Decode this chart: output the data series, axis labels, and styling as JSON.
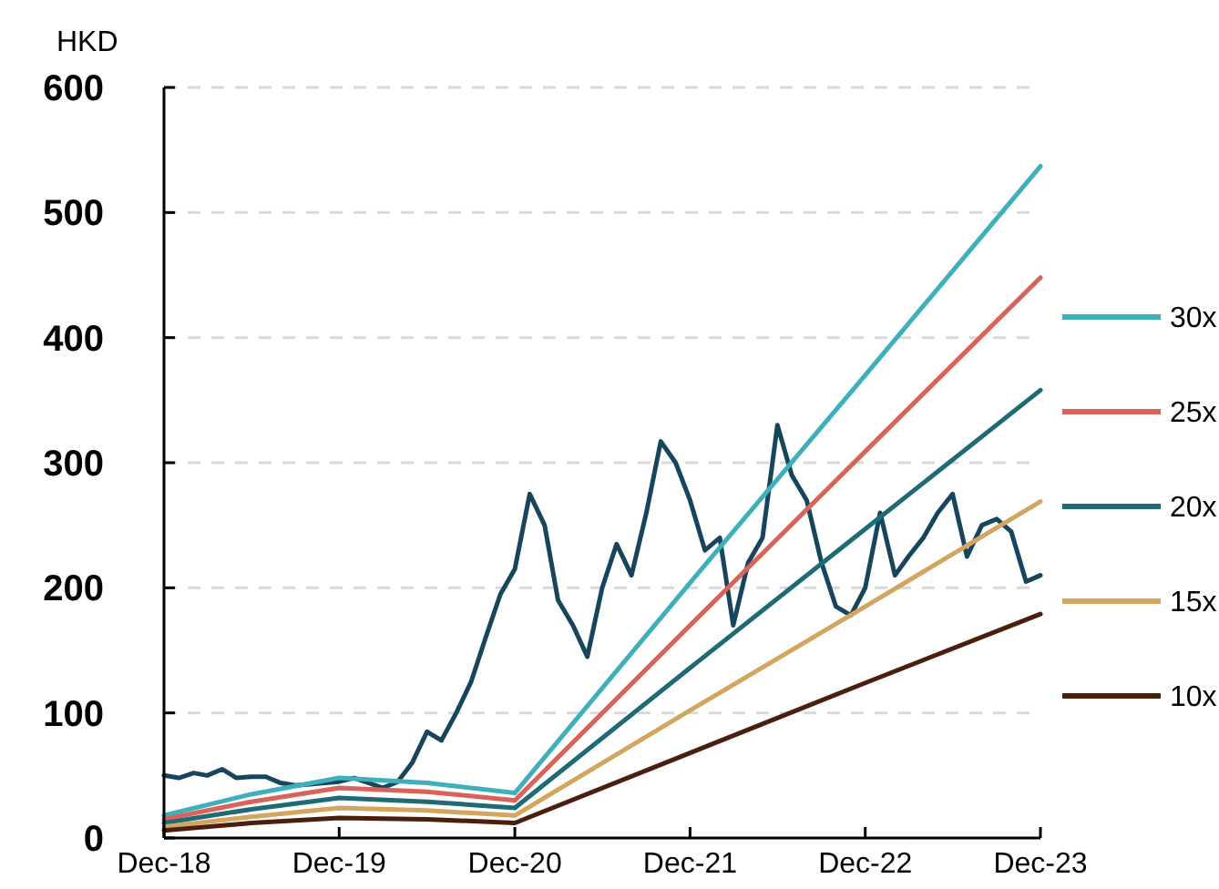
{
  "chart_data": {
    "type": "line",
    "ylabel": "HKD",
    "xlim": [
      "2018-12",
      "2023-12"
    ],
    "ylim": [
      0,
      600
    ],
    "yticks": [
      0,
      100,
      200,
      300,
      400,
      500,
      600
    ],
    "xticks": [
      {
        "value": "2018-12",
        "label": "Dec-18"
      },
      {
        "value": "2019-12",
        "label": "Dec-19"
      },
      {
        "value": "2020-12",
        "label": "Dec-20"
      },
      {
        "value": "2021-12",
        "label": "Dec-21"
      },
      {
        "value": "2022-12",
        "label": "Dec-22"
      },
      {
        "value": "2023-12",
        "label": "Dec-23"
      }
    ],
    "grid": "y",
    "legend": "right",
    "line_style": "solid",
    "marker": "none",
    "series": [
      {
        "color": "#17465c",
        "x": [
          "2018-12",
          "2019-01",
          "2019-02",
          "2019-03",
          "2019-04",
          "2019-05",
          "2019-06",
          "2019-07",
          "2019-08",
          "2019-09",
          "2019-10",
          "2019-11",
          "2019-12",
          "2020-01",
          "2020-02",
          "2020-03",
          "2020-04",
          "2020-05",
          "2020-06",
          "2020-07",
          "2020-08",
          "2020-09",
          "2020-10",
          "2020-11",
          "2020-12",
          "2021-01",
          "2021-02",
          "2021-03",
          "2021-04",
          "2021-05",
          "2021-06",
          "2021-07",
          "2021-08",
          "2021-09",
          "2021-10",
          "2021-11",
          "2021-12",
          "2022-01",
          "2022-02",
          "2022-03",
          "2022-04",
          "2022-05",
          "2022-06",
          "2022-07",
          "2022-08",
          "2022-09",
          "2022-10",
          "2022-11",
          "2022-12",
          "2023-01",
          "2023-02",
          "2023-03",
          "2023-04",
          "2023-05",
          "2023-06",
          "2023-07",
          "2023-08",
          "2023-09",
          "2023-10",
          "2023-11",
          "2023-12"
        ],
        "values": [
          50,
          48,
          52,
          50,
          55,
          48,
          49,
          49,
          44,
          42,
          43,
          44,
          45,
          48,
          44,
          40,
          45,
          60,
          85,
          78,
          100,
          125,
          160,
          195,
          215,
          275,
          250,
          190,
          170,
          145,
          200,
          235,
          210,
          260,
          317,
          300,
          270,
          230,
          240,
          170,
          220,
          240,
          330,
          290,
          270,
          220,
          185,
          178,
          200,
          260,
          210,
          225,
          240,
          260,
          275,
          225,
          250,
          255,
          245,
          205,
          210
        ]
      },
      {
        "name": "30x",
        "color": "#3fb0bb",
        "x": [
          "2018-12",
          "2019-06",
          "2019-12",
          "2020-06",
          "2020-12",
          "2021-12",
          "2022-12",
          "2023-12"
        ],
        "values": [
          18,
          35,
          48,
          44,
          36,
          204,
          370,
          537
        ]
      },
      {
        "name": "25x",
        "color": "#d9625a",
        "x": [
          "2018-12",
          "2019-06",
          "2019-12",
          "2020-06",
          "2020-12",
          "2021-12",
          "2022-12",
          "2023-12"
        ],
        "values": [
          15,
          29,
          40,
          37,
          30,
          170,
          309,
          448
        ]
      },
      {
        "name": "20x",
        "color": "#1f6b75",
        "x": [
          "2018-12",
          "2019-06",
          "2019-12",
          "2020-06",
          "2020-12",
          "2021-12",
          "2022-12",
          "2023-12"
        ],
        "values": [
          12,
          23,
          32,
          29,
          24,
          136,
          247,
          358
        ]
      },
      {
        "name": "15x",
        "color": "#d4a55f",
        "x": [
          "2018-12",
          "2019-06",
          "2019-12",
          "2020-06",
          "2020-12",
          "2021-12",
          "2022-12",
          "2023-12"
        ],
        "values": [
          9,
          17,
          24,
          22,
          18,
          102,
          185,
          269
        ]
      },
      {
        "name": "10x",
        "color": "#4a1f0e",
        "x": [
          "2018-12",
          "2019-06",
          "2019-12",
          "2020-06",
          "2020-12",
          "2021-12",
          "2022-12",
          "2023-12"
        ],
        "values": [
          6,
          12,
          16,
          15,
          12,
          68,
          124,
          179
        ]
      }
    ]
  }
}
